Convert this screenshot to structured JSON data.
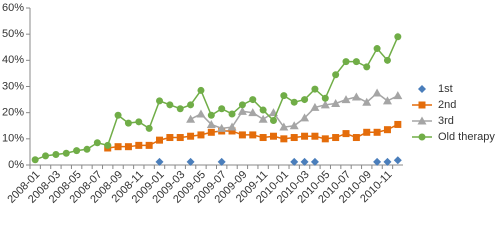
{
  "chart_data": {
    "type": "line",
    "categories": [
      "2008-01",
      null,
      "2008-03",
      null,
      "2008-05",
      null,
      "2008-07",
      null,
      "2008-09",
      null,
      "2008-11",
      null,
      "2009-01",
      null,
      "2009-03",
      null,
      "2009-05",
      null,
      "2009-07",
      null,
      "2009-09",
      null,
      "2009-11",
      null,
      "2010-01",
      null,
      "2010-03",
      null,
      "2010-05",
      null,
      "2010-07",
      null,
      "2010-09",
      null,
      "2010-11",
      null
    ],
    "ylim": [
      0,
      60
    ],
    "yticks": [
      {
        "value": 0,
        "label": "0%"
      },
      {
        "value": 10,
        "label": "10%"
      },
      {
        "value": 20,
        "label": "20%"
      },
      {
        "value": 30,
        "label": "30%"
      },
      {
        "value": 40,
        "label": "40%"
      },
      {
        "value": 50,
        "label": "50%"
      },
      {
        "value": 60,
        "label": "60%"
      }
    ],
    "grid": false,
    "legend": "right",
    "series": [
      {
        "name": "1st",
        "color": "#4a7ebb",
        "marker": "diamond",
        "line": false,
        "values": [
          null,
          null,
          null,
          null,
          null,
          null,
          null,
          null,
          null,
          null,
          null,
          null,
          1.2,
          null,
          null,
          1.2,
          null,
          null,
          1.2,
          null,
          null,
          null,
          null,
          null,
          null,
          1.2,
          1.2,
          1.2,
          null,
          null,
          null,
          null,
          null,
          1.2,
          1.2,
          1.8
        ]
      },
      {
        "name": "2nd",
        "color": "#e46c0a",
        "marker": "square",
        "line": true,
        "values": [
          null,
          null,
          null,
          null,
          null,
          null,
          null,
          6.5,
          7,
          7,
          7.5,
          7.5,
          9.5,
          10.5,
          10.5,
          11,
          11.5,
          12.5,
          13,
          13,
          11.5,
          11.5,
          10.5,
          11,
          10,
          10.5,
          11,
          11,
          10,
          10.5,
          12,
          10.5,
          12.5,
          12.5,
          13.5,
          15.5
        ]
      },
      {
        "name": "3rd",
        "color": "#a5a5a5",
        "marker": "triangle",
        "line": true,
        "values": [
          null,
          null,
          null,
          null,
          null,
          null,
          null,
          null,
          null,
          null,
          null,
          null,
          null,
          null,
          null,
          17.5,
          19.5,
          15.5,
          14,
          14.5,
          20.5,
          20,
          17.5,
          20,
          14.5,
          15,
          18,
          22,
          23,
          23.5,
          25,
          26,
          24,
          27.5,
          24.5,
          26.5
        ]
      },
      {
        "name": "Old therapy",
        "color": "#70ad47",
        "marker": "circle",
        "line": true,
        "values": [
          2,
          3.5,
          4,
          4.5,
          5.5,
          6,
          8.5,
          7.5,
          19,
          16,
          16.5,
          14,
          24.5,
          23,
          21.5,
          23,
          28.5,
          19,
          21.5,
          19.5,
          23,
          25,
          21,
          17,
          26.5,
          24,
          25,
          29,
          25.5,
          34.5,
          39.5,
          39.5,
          37.5,
          44.5,
          40,
          49
        ]
      }
    ]
  }
}
